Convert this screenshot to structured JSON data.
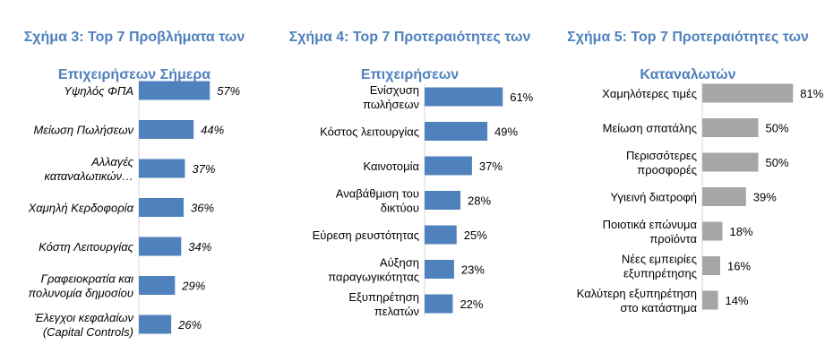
{
  "chart_data": [
    {
      "type": "bar",
      "title": "Σχήμα 3: Top 7 Προβλήματα των Επιχειρήσεων Σήμερα",
      "categories": [
        "Υψηλός ΦΠΑ",
        "Μείωση Πωλήσεων",
        "Αλλαγές καταναλωτικών…",
        "Χαμηλή Κερδοφορία",
        "Κόστη Λειτουργίας",
        "Γραφειοκρατία και πολυνομία δημοσίου",
        "Έλεγχοι κεφαλαίων (Capital Controls)"
      ],
      "values": [
        57,
        44,
        37,
        36,
        34,
        29,
        26
      ],
      "value_labels": [
        "57%",
        "44%",
        "37%",
        "36%",
        "34%",
        "29%",
        "26%"
      ],
      "bar_color": "#4f81bd",
      "title_color": "#4f81bd"
    },
    {
      "type": "bar",
      "title": "Σχήμα 4: Top 7 Προτεραιότητες των Επιχειρήσεων",
      "categories": [
        "Ενίσχυση πωλήσεων",
        "Κόστος λειτουργίας",
        "Καινοτομία",
        "Αναβάθμιση του δικτύου",
        "Εύρεση ρευστότητας",
        "Αύξηση παραγωγικότητας",
        "Εξυπηρέτηση πελατών"
      ],
      "values": [
        61,
        49,
        37,
        28,
        25,
        23,
        22
      ],
      "value_labels": [
        "61%",
        "49%",
        "37%",
        "28%",
        "25%",
        "23%",
        "22%"
      ],
      "bar_color": "#4f81bd",
      "title_color": "#4f81bd"
    },
    {
      "type": "bar",
      "title": "Σχήμα 5: Top 7 Προτεραιότητες των Καταναλωτών",
      "categories": [
        "Χαμηλότερες τιμές",
        "Μείωση σπατάλης",
        "Περισσότερες προσφορές",
        "Υγιεινή διατροφή",
        "Ποιοτικά επώνυμα προϊόντα",
        "Νέες εμπειρίες εξυπηρέτησης",
        "Καλύτερη εξυπηρέτηση στο κατάστημα"
      ],
      "values": [
        81,
        50,
        50,
        39,
        18,
        16,
        14
      ],
      "value_labels": [
        "81%",
        "50%",
        "50%",
        "39%",
        "18%",
        "16%",
        "14%"
      ],
      "bar_color": "#a6a6a6",
      "title_color": "#4f81bd"
    }
  ],
  "panels": [
    {
      "title_lines": [
        "Σχήμα 3: Top 7 Προβλήματα των",
        "Επιχειρήσεων Σήμερα"
      ],
      "label_lines": [
        [
          "Υψηλός ΦΠΑ"
        ],
        [
          "Μείωση Πωλήσεων"
        ],
        [
          "Αλλαγές",
          "καταναλωτικών…"
        ],
        [
          "Χαμηλή Κερδοφορία"
        ],
        [
          "Κόστη Λειτουργίας"
        ],
        [
          "Γραφειοκρατία και",
          "πολυνομία δημοσίου"
        ],
        [
          "Έλεγχοι κεφαλαίων",
          "(Capital Controls)"
        ]
      ]
    },
    {
      "title_lines": [
        "Σχήμα 4: Top 7 Προτεραιότητες των",
        "Επιχειρήσεων"
      ],
      "label_lines": [
        [
          "Ενίσχυση",
          "πωλήσεων"
        ],
        [
          "Κόστος λειτουργίας"
        ],
        [
          "Καινοτομία"
        ],
        [
          "Αναβάθμιση του",
          "δικτύου"
        ],
        [
          "Εύρεση ρευστότητας"
        ],
        [
          "Αύξηση",
          "παραγωγικότητας"
        ],
        [
          "Εξυπηρέτηση",
          "πελατών"
        ]
      ]
    },
    {
      "title_lines": [
        "Σχήμα 5: Top 7 Προτεραιότητες των",
        "Καταναλωτών"
      ],
      "label_lines": [
        [
          "Χαμηλότερες τιμές"
        ],
        [
          "Μείωση σπατάλης"
        ],
        [
          "Περισσότερες",
          "προσφορές"
        ],
        [
          "Υγιεινή διατροφή"
        ],
        [
          "Ποιοτικά επώνυμα",
          "προϊόντα"
        ],
        [
          "Νέες εμπειρίες",
          "εξυπηρέτησης"
        ],
        [
          "Καλύτερη εξυπηρέτηση",
          "στο κατάστημα"
        ]
      ]
    }
  ]
}
